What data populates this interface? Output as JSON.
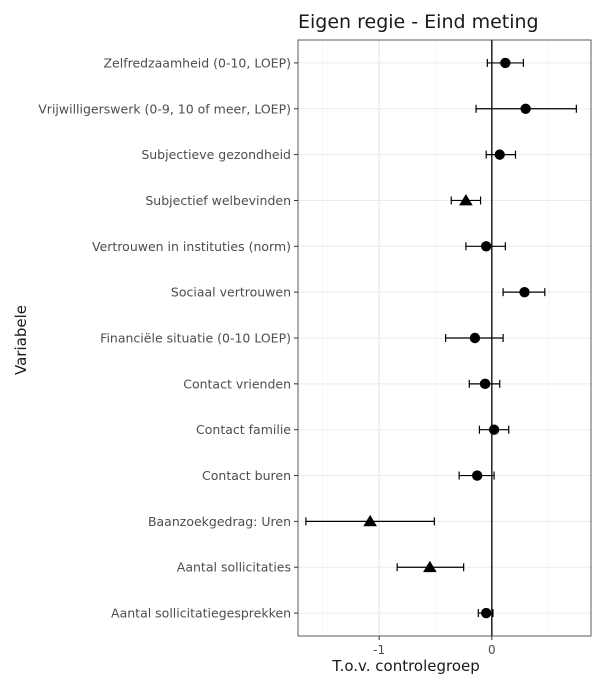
{
  "chart_data": {
    "type": "scatter",
    "title": "Eigen regie  -  Eind meting",
    "xlabel": "T.o.v. controlegroep",
    "ylabel": "Variabele",
    "xlim": [
      -1.72,
      0.88
    ],
    "xticks": [
      -1,
      0
    ],
    "grid": true,
    "reference_line_x": 0,
    "points": [
      {
        "label": "Zelfredzaamheid (0-10, LOEP)",
        "estimate": 0.12,
        "lower": -0.04,
        "upper": 0.28,
        "marker": "circle"
      },
      {
        "label": "Vrijwilligerswerk (0-9, 10 of meer, LOEP)",
        "estimate": 0.3,
        "lower": -0.14,
        "upper": 0.75,
        "marker": "circle"
      },
      {
        "label": "Subjectieve gezondheid",
        "estimate": 0.07,
        "lower": -0.05,
        "upper": 0.21,
        "marker": "circle"
      },
      {
        "label": "Subjectief welbevinden",
        "estimate": -0.23,
        "lower": -0.36,
        "upper": -0.1,
        "marker": "triangle"
      },
      {
        "label": "Vertrouwen in instituties (norm)",
        "estimate": -0.05,
        "lower": -0.23,
        "upper": 0.12,
        "marker": "circle"
      },
      {
        "label": "Sociaal vertrouwen",
        "estimate": 0.29,
        "lower": 0.1,
        "upper": 0.47,
        "marker": "circle"
      },
      {
        "label": "Financiële situatie (0-10 LOEP)",
        "estimate": -0.15,
        "lower": -0.41,
        "upper": 0.1,
        "marker": "circle"
      },
      {
        "label": "Contact vrienden",
        "estimate": -0.06,
        "lower": -0.2,
        "upper": 0.07,
        "marker": "circle"
      },
      {
        "label": "Contact familie",
        "estimate": 0.02,
        "lower": -0.11,
        "upper": 0.15,
        "marker": "circle"
      },
      {
        "label": "Contact buren",
        "estimate": -0.13,
        "lower": -0.29,
        "upper": 0.02,
        "marker": "circle"
      },
      {
        "label": "Baanzoekgedrag: Uren",
        "estimate": -1.08,
        "lower": -1.65,
        "upper": -0.51,
        "marker": "triangle"
      },
      {
        "label": "Aantal sollicitaties",
        "estimate": -0.55,
        "lower": -0.84,
        "upper": -0.25,
        "marker": "triangle"
      },
      {
        "label": "Aantal sollicitatiegesprekken",
        "estimate": -0.05,
        "lower": -0.12,
        "upper": 0.01,
        "marker": "circle"
      }
    ]
  }
}
